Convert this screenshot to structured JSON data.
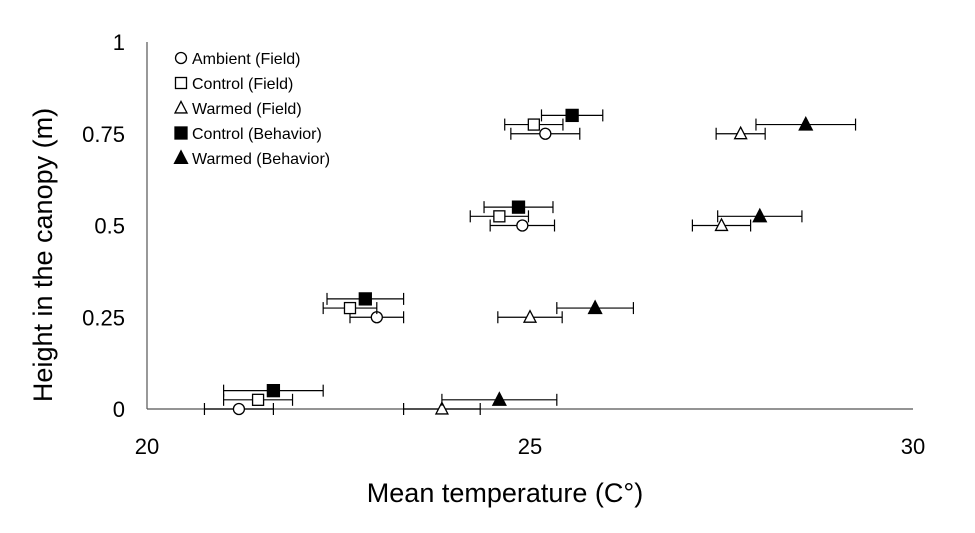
{
  "chart_data": {
    "type": "scatter",
    "title": "",
    "xlabel": "Mean temperature (C°)",
    "ylabel": "Height in the canopy (m)",
    "xlim": [
      20,
      30
    ],
    "ylim": [
      0,
      1
    ],
    "x_ticks": [
      "20",
      "25",
      "30"
    ],
    "y_ticks": [
      "0",
      "0.25",
      "0.5",
      "0.75",
      "1"
    ],
    "grid": false,
    "legend_position": "top-left",
    "series": [
      {
        "name": "Ambient (Field)",
        "marker": "circle-open",
        "points": [
          {
            "x": 21.2,
            "y": 0,
            "xerr": 0.45
          },
          {
            "x": 23.0,
            "y": 0.25,
            "xerr": 0.35
          },
          {
            "x": 24.9,
            "y": 0.5,
            "xerr": 0.42
          },
          {
            "x": 25.2,
            "y": 0.75,
            "xerr": 0.45
          }
        ]
      },
      {
        "name": "Control (Field)",
        "marker": "square-open",
        "points": [
          {
            "x": 21.45,
            "y": 0.025,
            "xerr": 0.45
          },
          {
            "x": 22.65,
            "y": 0.275,
            "xerr": 0.35
          },
          {
            "x": 24.6,
            "y": 0.525,
            "xerr": 0.38
          },
          {
            "x": 25.05,
            "y": 0.775,
            "xerr": 0.38
          }
        ]
      },
      {
        "name": "Warmed (Field)",
        "marker": "triangle-open",
        "points": [
          {
            "x": 23.85,
            "y": 0,
            "xerr": 0.5
          },
          {
            "x": 25.0,
            "y": 0.25,
            "xerr": 0.42
          },
          {
            "x": 27.5,
            "y": 0.5,
            "xerr": 0.38
          },
          {
            "x": 27.75,
            "y": 0.75,
            "xerr": 0.32
          }
        ]
      },
      {
        "name": "Control (Behavior)",
        "marker": "square-filled",
        "points": [
          {
            "x": 21.65,
            "y": 0.05,
            "xerr": 0.65
          },
          {
            "x": 22.85,
            "y": 0.3,
            "xerr": 0.5
          },
          {
            "x": 24.85,
            "y": 0.55,
            "xerr": 0.45
          },
          {
            "x": 25.55,
            "y": 0.8,
            "xerr": 0.4
          }
        ]
      },
      {
        "name": "Warmed (Behavior)",
        "marker": "triangle-filled",
        "points": [
          {
            "x": 24.6,
            "y": 0.025,
            "xerr": 0.75
          },
          {
            "x": 25.85,
            "y": 0.275,
            "xerr": 0.5
          },
          {
            "x": 28.0,
            "y": 0.525,
            "xerr": 0.55
          },
          {
            "x": 28.6,
            "y": 0.775,
            "xerr": 0.65
          }
        ]
      }
    ]
  }
}
